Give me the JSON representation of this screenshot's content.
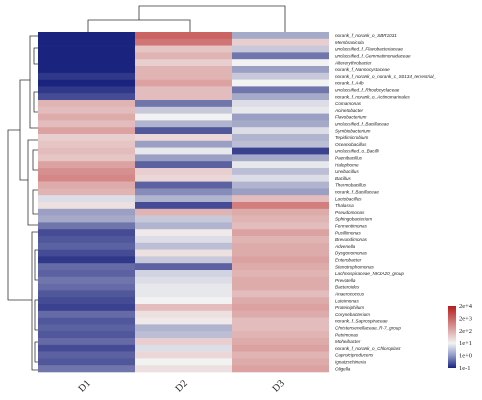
{
  "chart_data": {
    "type": "heatmap",
    "title": "",
    "columns": [
      "D1",
      "D2",
      "D3"
    ],
    "rows": [
      "norank_f_norank_o_SBR1031",
      "Membranicola",
      "unclassified_f_Flavobacteriaceae",
      "unclassified_f_Gemmatimonadaceae",
      "Altererythrobacter",
      "norank_f_Nannocystaceae",
      "norank_f_norank_o_norank_c_S0134_terrestrial_",
      "norank_f_A4b",
      "unclassified_f_Rhodocyclaceae",
      "norank_f_norank_o_Actinomarinales",
      "Comamonas",
      "Acinetobacter",
      "Flavobacterium",
      "unclassified_f_Bacillaceae",
      "Symbiobacterium",
      "Tepidimicrobium",
      "Oceanobacillus",
      "unclassified_o_Bacilli",
      "Paenibacillus",
      "Halophome",
      "Ureibacillus",
      "Bacillus",
      "Thermobacillus",
      "norank_f_Bacillaceae",
      "Lactobacillus",
      "Thalassa",
      "Pseudomonas",
      "Sphingobacterium",
      "Fermentimonas",
      "Pusillimonas",
      "Brevundimonas",
      "Advenella",
      "Dysgonomonas",
      "Enterobacter",
      "Stenotrophomonas",
      "Lachnospiraceae_NK3A20_group",
      "Prevotella",
      "Bacteroides",
      "Anaerococcus",
      "Luteimonas",
      "Proteiniphilum",
      "Corynebacterium",
      "norank_f_Saprospiraceae",
      "Christensenellaceae_R-7_group",
      "Petrimonas",
      "Moheibacter",
      "norank_f_norank_o_Chloroplast",
      "Caproiciproducens",
      "Ignatzschineria",
      "Oligella"
    ],
    "values": [
      [
        -1.0,
        2.6,
        0.3
      ],
      [
        -1.0,
        2.4,
        1.4
      ],
      [
        -1.0,
        1.5,
        0.6
      ],
      [
        -1.0,
        1.7,
        -0.2
      ],
      [
        -1.0,
        1.4,
        1.0
      ],
      [
        -1.0,
        1.7,
        0.2
      ],
      [
        -0.8,
        1.7,
        0.6
      ],
      [
        -1.0,
        1.9,
        1.0
      ],
      [
        -0.8,
        1.6,
        -0.2
      ],
      [
        -0.6,
        1.6,
        0.3
      ],
      [
        1.7,
        -0.2,
        0.8
      ],
      [
        1.6,
        0.6,
        0.9
      ],
      [
        1.8,
        1.0,
        0.2
      ],
      [
        1.6,
        0.4,
        0.3
      ],
      [
        1.9,
        -0.5,
        0.8
      ],
      [
        1.4,
        1.3,
        0.4
      ],
      [
        1.5,
        0.2,
        0.5
      ],
      [
        1.6,
        0.9,
        -0.7
      ],
      [
        1.5,
        0.2,
        0.3
      ],
      [
        1.9,
        -0.4,
        0.9
      ],
      [
        2.1,
        1.4,
        0.5
      ],
      [
        2.2,
        1.3,
        0.8
      ],
      [
        1.8,
        -0.4,
        0.4
      ],
      [
        1.7,
        0.0,
        0.2
      ],
      [
        0.8,
        0.4,
        1.6
      ],
      [
        1.2,
        -0.6,
        2.3
      ],
      [
        0.2,
        1.7,
        1.8
      ],
      [
        0.3,
        0.6,
        1.7
      ],
      [
        -0.2,
        0.4,
        1.6
      ],
      [
        -0.6,
        1.1,
        1.9
      ],
      [
        -0.5,
        0.8,
        1.7
      ],
      [
        -0.4,
        0.5,
        1.8
      ],
      [
        -0.6,
        1.2,
        1.8
      ],
      [
        -0.8,
        0.6,
        1.9
      ],
      [
        -0.3,
        -0.4,
        1.8
      ],
      [
        -0.4,
        0.7,
        1.7
      ],
      [
        -0.2,
        0.8,
        1.8
      ],
      [
        -0.3,
        0.9,
        1.8
      ],
      [
        -0.5,
        0.9,
        1.6
      ],
      [
        -0.6,
        1.0,
        1.8
      ],
      [
        -0.7,
        1.6,
        1.9
      ],
      [
        -0.3,
        1.2,
        1.8
      ],
      [
        -0.5,
        1.1,
        1.6
      ],
      [
        -0.4,
        0.4,
        1.6
      ],
      [
        -0.5,
        0.5,
        1.7
      ],
      [
        -0.3,
        1.4,
        1.8
      ],
      [
        -0.6,
        0.8,
        1.9
      ],
      [
        -0.4,
        1.3,
        1.7
      ],
      [
        -0.5,
        1.0,
        1.8
      ],
      [
        -0.2,
        1.2,
        1.9
      ]
    ],
    "colorscale": {
      "low": "#1a237e",
      "mid": "#f2f2f2",
      "high": "#b71c1c",
      "min": -1,
      "max": 4
    },
    "legend": {
      "placement": "right",
      "ticks": [
        {
          "value": 4,
          "label": "2e+4"
        },
        {
          "value": 3,
          "label": "2e+3"
        },
        {
          "value": 2,
          "label": "2e+2"
        },
        {
          "value": 1,
          "label": "1e+1"
        },
        {
          "value": 0,
          "label": "1e+0"
        },
        {
          "value": -1,
          "label": "1e-1"
        }
      ]
    },
    "column_dendrogram": true,
    "row_dendrogram": true,
    "grid": false
  }
}
